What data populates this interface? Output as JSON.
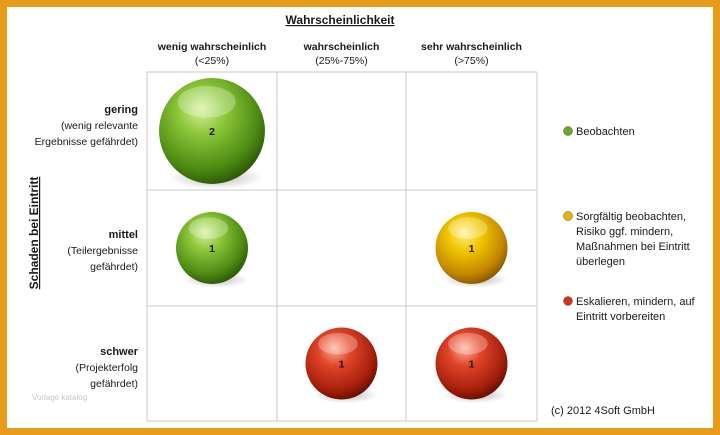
{
  "chart_data": {
    "type": "scatter",
    "title": "Wahrscheinlichkeit",
    "ylabel": "Schaden bei Eintritt",
    "columns": [
      {
        "label": "wenig wahrscheinlich",
        "sub": "(<25%)"
      },
      {
        "label": "wahrscheinlich",
        "sub": "(25%-75%)"
      },
      {
        "label": "sehr wahrscheinlich",
        "sub": "(>75%)"
      }
    ],
    "rows": [
      {
        "label": "gering",
        "sub": [
          "(wenig relevante",
          "Ergebnisse gefährdet)"
        ]
      },
      {
        "label": "mittel",
        "sub": [
          "(Teilergebnisse",
          "gefährdet)"
        ]
      },
      {
        "label": "schwer",
        "sub": [
          "(Projekterfolg",
          "gefährdet)"
        ]
      }
    ],
    "points": [
      {
        "row": 0,
        "col": 0,
        "count": 2,
        "category": "green"
      },
      {
        "row": 1,
        "col": 0,
        "count": 1,
        "category": "green"
      },
      {
        "row": 1,
        "col": 2,
        "count": 1,
        "category": "yellow"
      },
      {
        "row": 2,
        "col": 1,
        "count": 1,
        "category": "red"
      },
      {
        "row": 2,
        "col": 2,
        "count": 1,
        "category": "red"
      }
    ],
    "legend": [
      {
        "key": "green",
        "color": "#6aa821",
        "lines": [
          "Beobachten"
        ]
      },
      {
        "key": "yellow",
        "color": "#e8b400",
        "lines": [
          "Sorgfältig beobachten,",
          "Risiko ggf. mindern,",
          "Maßnahmen bei Eintritt",
          "überlegen"
        ]
      },
      {
        "key": "red",
        "color": "#d2341a",
        "lines": [
          "Eskalieren, mindern, auf",
          "Eintritt vorbereiten"
        ]
      }
    ],
    "legend_position": "right",
    "grid": true
  },
  "copyright": "(c) 2012 4Soft GmbH",
  "watermark": "Vorlage katalog"
}
